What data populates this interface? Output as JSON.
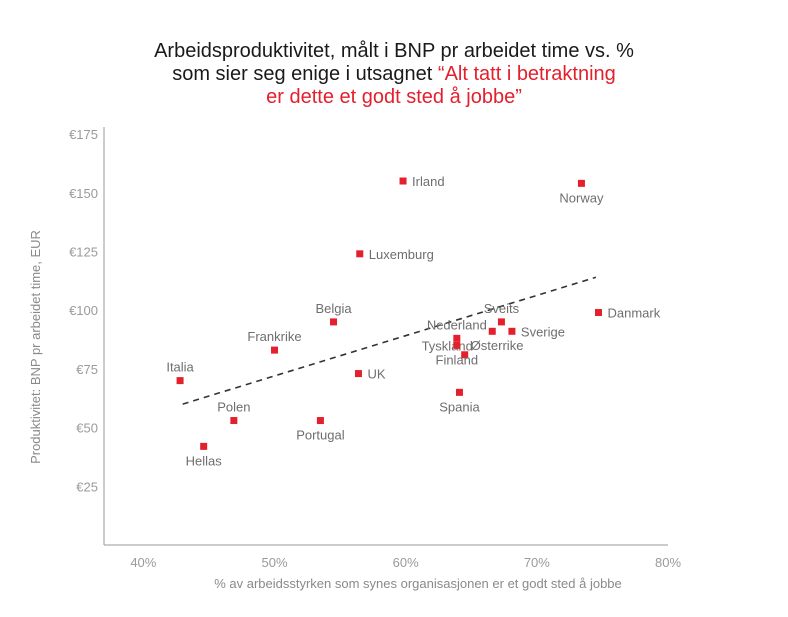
{
  "title": {
    "line1": "Arbeidsproduktivitet, målt i BNP pr arbeidet time vs. %",
    "line2a": "som sier seg enige i utsagnet ",
    "line2b": "“Alt tatt i betraktning",
    "line3": "er dette et godt sted å jobbe”"
  },
  "colors": {
    "marker": "#e3202d",
    "axis": "#9a9a9a",
    "trend": "#333333",
    "highlight": "#e3202d"
  },
  "chart_data": {
    "type": "scatter",
    "xlabel": "% av arbeidsstyrken som synes organisasjonen er et godt sted å jobbe",
    "ylabel": "Produktivitet: BNP pr arbeidet time, EUR",
    "xlim": [
      37,
      80
    ],
    "ylim": [
      0,
      178
    ],
    "xticks": [
      40,
      50,
      60,
      70,
      80
    ],
    "xtick_labels": [
      "40%",
      "50%",
      "60%",
      "70%",
      "80%"
    ],
    "yticks": [
      25,
      50,
      75,
      100,
      125,
      150,
      175
    ],
    "ytick_labels": [
      "€25",
      "€50",
      "€75",
      "€100",
      "€125",
      "€150",
      "€175"
    ],
    "grid": false,
    "trendline": {
      "x": [
        43,
        74.5
      ],
      "y": [
        60,
        114
      ],
      "style": "dashed"
    },
    "points": [
      {
        "label": "Irland",
        "x": 59.8,
        "y": 155,
        "pos": "right"
      },
      {
        "label": "Norway",
        "x": 73.4,
        "y": 154,
        "pos": "below"
      },
      {
        "label": "Luxemburg",
        "x": 56.5,
        "y": 124,
        "pos": "right"
      },
      {
        "label": "Danmark",
        "x": 74.7,
        "y": 99,
        "pos": "right"
      },
      {
        "label": "Sveits",
        "x": 67.3,
        "y": 95,
        "pos": "above"
      },
      {
        "label": "Belgia",
        "x": 54.5,
        "y": 95,
        "pos": "above"
      },
      {
        "label": "Nederland",
        "x": 63.9,
        "y": 88,
        "pos": "above"
      },
      {
        "label": "Sverige",
        "x": 68.1,
        "y": 91,
        "pos": "right"
      },
      {
        "label": "Tyskland",
        "x": 66.6,
        "y": 91,
        "pos": "left-below"
      },
      {
        "label": "Østerrike",
        "x": 64.5,
        "y": 81,
        "pos": "right-above"
      },
      {
        "label": "Frankrike",
        "x": 50.0,
        "y": 83,
        "pos": "above"
      },
      {
        "label": "Finland",
        "x": 63.9,
        "y": 85,
        "pos": "below"
      },
      {
        "label": "UK",
        "x": 56.4,
        "y": 73,
        "pos": "right"
      },
      {
        "label": "Italia",
        "x": 42.8,
        "y": 70,
        "pos": "above"
      },
      {
        "label": "Spania",
        "x": 64.1,
        "y": 65,
        "pos": "below"
      },
      {
        "label": "Polen",
        "x": 46.9,
        "y": 53,
        "pos": "above"
      },
      {
        "label": "Portugal",
        "x": 53.5,
        "y": 53,
        "pos": "below"
      },
      {
        "label": "Hellas",
        "x": 44.6,
        "y": 42,
        "pos": "below"
      }
    ]
  }
}
